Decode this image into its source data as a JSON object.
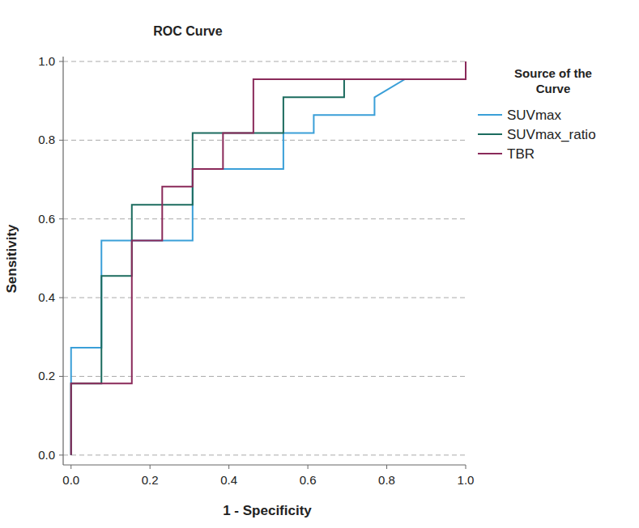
{
  "chart_data": {
    "type": "line",
    "title": "ROC Curve",
    "x_label": "1 - Specificity",
    "y_label": "Sensitivity",
    "legend_title": "Source of the Curve",
    "legend": "right",
    "grid": true,
    "xlim": [
      -0.02,
      1.0
    ],
    "ylim": [
      -0.025,
      1.0
    ],
    "xticks": [
      {
        "value": 0,
        "label": "0.0"
      },
      {
        "value": 0.2,
        "label": "0.2"
      },
      {
        "value": 0.4,
        "label": "0.4"
      },
      {
        "value": 0.6,
        "label": "0.6"
      },
      {
        "value": 0.8,
        "label": "0.8"
      },
      {
        "value": 1,
        "label": "1.0"
      }
    ],
    "yticks": [
      {
        "value": 0,
        "label": "0.0"
      },
      {
        "value": 0.2,
        "label": "0.2"
      },
      {
        "value": 0.4,
        "label": "0.4"
      },
      {
        "value": 0.6,
        "label": "0.6"
      },
      {
        "value": 0.8,
        "label": "0.8"
      },
      {
        "value": 1,
        "label": "1.0"
      }
    ],
    "series": [
      {
        "name": "SUVmax",
        "color": "#3a9fd8",
        "x": [
          0,
          0,
          0,
          0.077,
          0.077,
          0.308,
          0.308,
          0.538,
          0.538,
          0.615,
          0.615,
          0.769,
          0.769,
          0.846,
          1.0,
          1.0
        ],
        "values": [
          0,
          0.182,
          0.273,
          0.273,
          0.545,
          0.545,
          0.727,
          0.727,
          0.818,
          0.818,
          0.864,
          0.864,
          0.909,
          0.955,
          0.955,
          1.0
        ]
      },
      {
        "name": "SUVmax_ratio",
        "color": "#1b6b5e",
        "x": [
          0,
          0,
          0.077,
          0.077,
          0.154,
          0.154,
          0.308,
          0.308,
          0.538,
          0.538,
          0.692,
          0.692,
          1.0,
          1.0
        ],
        "values": [
          0,
          0.182,
          0.182,
          0.455,
          0.455,
          0.636,
          0.636,
          0.818,
          0.818,
          0.909,
          0.909,
          0.955,
          0.955,
          1.0
        ]
      },
      {
        "name": "TBR",
        "color": "#8a2a5a",
        "x": [
          0,
          0,
          0.154,
          0.154,
          0.231,
          0.231,
          0.308,
          0.308,
          0.385,
          0.385,
          0.462,
          0.462,
          1.0,
          1.0
        ],
        "values": [
          0,
          0.182,
          0.182,
          0.545,
          0.545,
          0.682,
          0.682,
          0.727,
          0.727,
          0.818,
          0.818,
          0.955,
          0.955,
          1.0
        ]
      }
    ]
  }
}
